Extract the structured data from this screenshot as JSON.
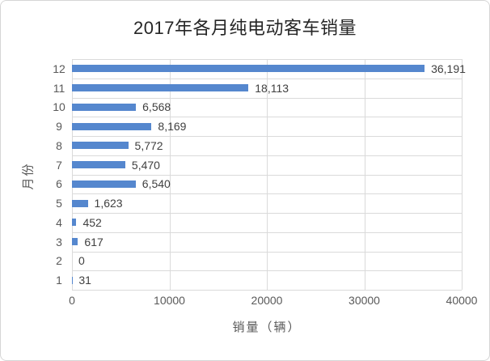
{
  "chart_data": {
    "type": "bar",
    "orientation": "horizontal",
    "title": "2017年各月纯电动客车销量",
    "xlabel": "销量（辆）",
    "ylabel": "月份",
    "categories": [
      "12",
      "11",
      "10",
      "9",
      "8",
      "7",
      "6",
      "5",
      "4",
      "3",
      "2",
      "1"
    ],
    "values": [
      36191,
      18113,
      6568,
      8169,
      5772,
      5470,
      6540,
      1623,
      452,
      617,
      0,
      31
    ],
    "value_labels": [
      "36,191",
      "18,113",
      "6,568",
      "8,169",
      "5,772",
      "5,470",
      "6,540",
      "1,623",
      "452",
      "617",
      "0",
      "31"
    ],
    "xlim": [
      0,
      40000
    ],
    "x_ticks": [
      0,
      10000,
      20000,
      30000,
      40000
    ],
    "x_tick_labels": [
      "0",
      "10000",
      "20000",
      "30000",
      "40000"
    ],
    "grid": true,
    "legend": false,
    "colors": {
      "bar": "#5587ce",
      "gridline": "#dadada",
      "value_label": "#404040",
      "axis_text": "#595959",
      "title": "#262626",
      "canvas_border": "#d6d6d6",
      "background": "#ffffff"
    }
  }
}
